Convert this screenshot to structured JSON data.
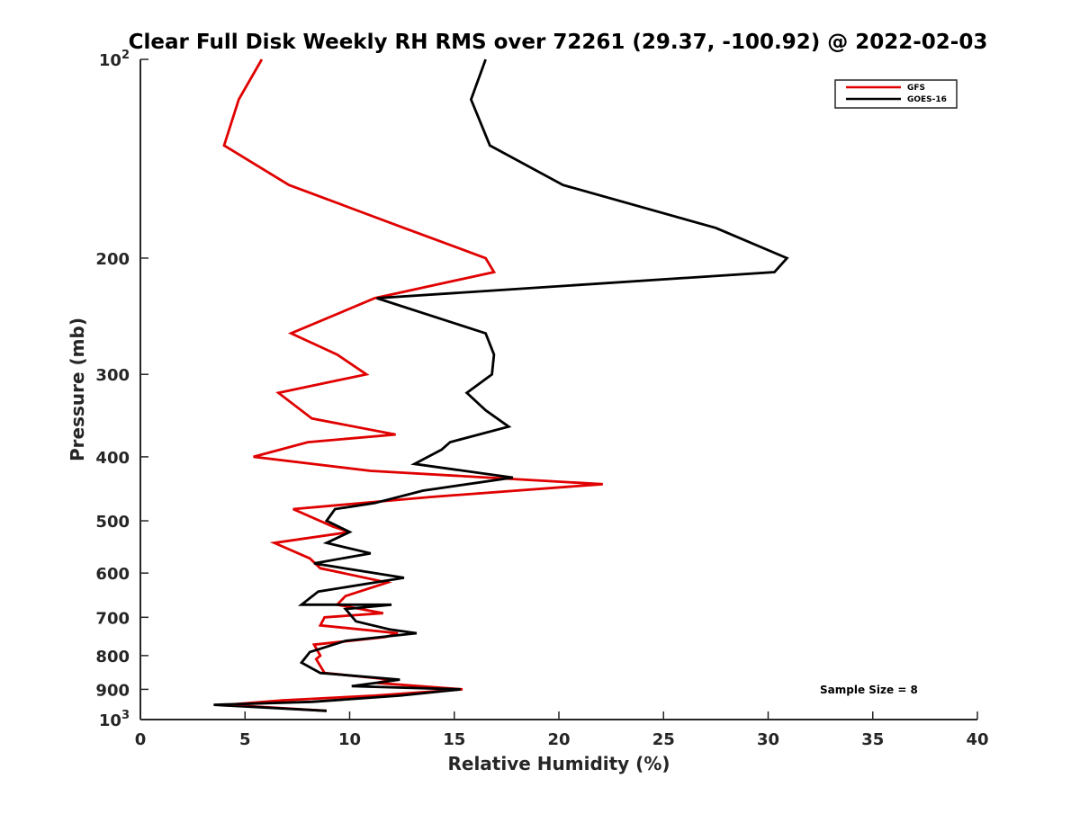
{
  "chart_data": {
    "type": "line",
    "title": "Clear Full Disk Weekly RH RMS over 72261 (29.37, -100.92) @ 2022-02-03",
    "xlabel": "Relative Humidity (%)",
    "ylabel": "Pressure (mb)",
    "xlim": [
      0,
      40
    ],
    "ylim": [
      100,
      1000
    ],
    "y_scale": "log",
    "y_reversed": true,
    "x_ticks": [
      "0",
      "5",
      "10",
      "15",
      "20",
      "25",
      "30",
      "35",
      "40"
    ],
    "y_ticks": [
      {
        "value": 100,
        "base": "10",
        "exp": "2"
      },
      {
        "value": 200,
        "label": "200"
      },
      {
        "value": 300,
        "label": "300"
      },
      {
        "value": 400,
        "label": "400"
      },
      {
        "value": 500,
        "label": "500"
      },
      {
        "value": 600,
        "label": "600"
      },
      {
        "value": 700,
        "label": "700"
      },
      {
        "value": 800,
        "label": "800"
      },
      {
        "value": 900,
        "label": "900"
      },
      {
        "value": 1000,
        "base": "10",
        "exp": "3"
      }
    ],
    "grid": false,
    "legend_position": "top-right",
    "annotation": "Sample Size = 8",
    "series": [
      {
        "name": "GFS",
        "color": "#e00000",
        "points": [
          [
            5.8,
            100
          ],
          [
            4.7,
            115
          ],
          [
            4.0,
            135
          ],
          [
            7.1,
            155
          ],
          [
            12.6,
            180
          ],
          [
            16.5,
            200
          ],
          [
            16.9,
            210
          ],
          [
            11.2,
            230
          ],
          [
            7.2,
            260
          ],
          [
            9.4,
            280
          ],
          [
            10.8,
            300
          ],
          [
            6.6,
            320
          ],
          [
            8.2,
            350
          ],
          [
            12.2,
            370
          ],
          [
            8.0,
            380
          ],
          [
            5.4,
            400
          ],
          [
            11.0,
            420
          ],
          [
            22.1,
            440
          ],
          [
            13.9,
            460
          ],
          [
            7.3,
            480
          ],
          [
            9.2,
            510
          ],
          [
            10.0,
            520
          ],
          [
            6.4,
            540
          ],
          [
            8.1,
            570
          ],
          [
            8.6,
            590
          ],
          [
            11.8,
            620
          ],
          [
            9.8,
            650
          ],
          [
            9.4,
            670
          ],
          [
            11.6,
            690
          ],
          [
            8.8,
            700
          ],
          [
            8.6,
            720
          ],
          [
            12.3,
            740
          ],
          [
            11.7,
            750
          ],
          [
            8.3,
            770
          ],
          [
            8.6,
            800
          ],
          [
            8.4,
            810
          ],
          [
            8.8,
            850
          ],
          [
            12.0,
            870
          ],
          [
            11.3,
            880
          ],
          [
            15.4,
            900
          ],
          [
            11.2,
            920
          ],
          [
            6.8,
            935
          ],
          [
            4.1,
            950
          ],
          [
            8.9,
            970
          ]
        ]
      },
      {
        "name": "GOES-16",
        "color": "#000000",
        "points": [
          [
            16.5,
            100
          ],
          [
            15.8,
            115
          ],
          [
            16.7,
            135
          ],
          [
            20.2,
            155
          ],
          [
            27.5,
            180
          ],
          [
            30.9,
            200
          ],
          [
            30.3,
            210
          ],
          [
            11.3,
            230
          ],
          [
            16.5,
            260
          ],
          [
            16.9,
            280
          ],
          [
            16.8,
            300
          ],
          [
            15.6,
            320
          ],
          [
            16.5,
            340
          ],
          [
            17.6,
            360
          ],
          [
            14.8,
            380
          ],
          [
            14.4,
            390
          ],
          [
            13.1,
            410
          ],
          [
            17.8,
            430
          ],
          [
            13.5,
            450
          ],
          [
            11.2,
            470
          ],
          [
            9.3,
            480
          ],
          [
            8.9,
            500
          ],
          [
            10.0,
            520
          ],
          [
            8.9,
            540
          ],
          [
            11.0,
            560
          ],
          [
            8.3,
            580
          ],
          [
            12.6,
            610
          ],
          [
            8.5,
            640
          ],
          [
            7.7,
            670
          ],
          [
            12.0,
            670
          ],
          [
            9.8,
            680
          ],
          [
            10.3,
            710
          ],
          [
            11.9,
            730
          ],
          [
            13.2,
            740
          ],
          [
            9.8,
            760
          ],
          [
            8.1,
            790
          ],
          [
            7.7,
            820
          ],
          [
            8.6,
            850
          ],
          [
            12.4,
            870
          ],
          [
            10.1,
            890
          ],
          [
            15.3,
            900
          ],
          [
            12.4,
            920
          ],
          [
            8.2,
            940
          ],
          [
            3.5,
            950
          ],
          [
            8.9,
            970
          ]
        ]
      }
    ]
  }
}
